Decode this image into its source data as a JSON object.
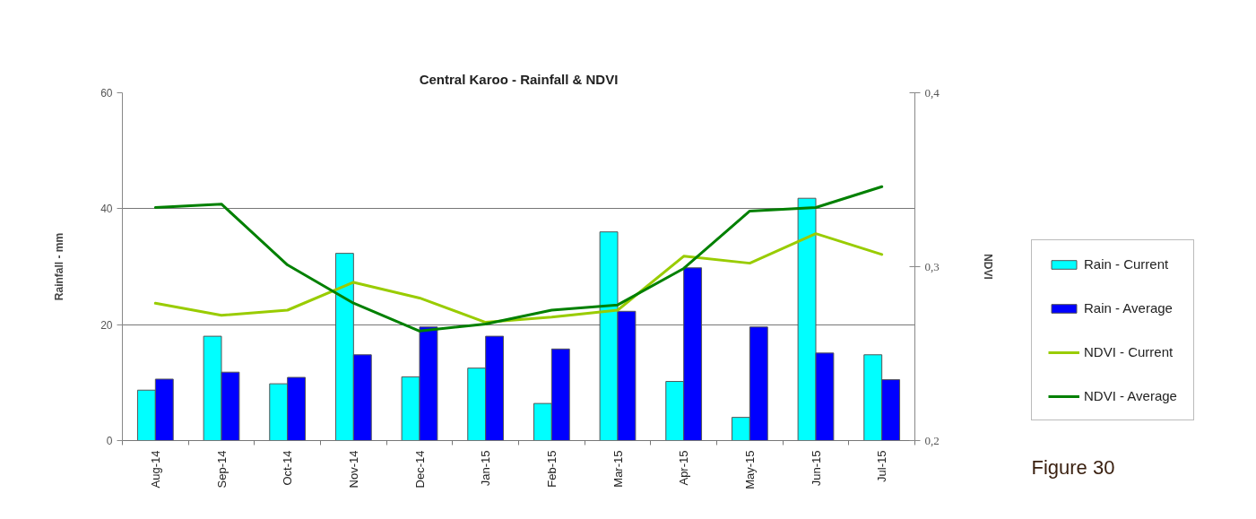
{
  "chart_data": {
    "type": "bar",
    "title": "Central Karoo - Rainfall & NDVI",
    "ylabel": "Rainfall - mm",
    "y2label": "NDVI",
    "annotations": [
      "Figure 30"
    ],
    "categories": [
      "Aug-14",
      "Sep-14",
      "Oct-14",
      "Nov-14",
      "Dec-14",
      "Jan-15",
      "Feb-15",
      "Mar-15",
      "Apr-15",
      "May-15",
      "Jun-15",
      "Jul-15"
    ],
    "series": [
      {
        "name": "Rain - Current",
        "color": "#00ffff",
        "values": [
          8.7,
          18.0,
          9.8,
          32.3,
          11.0,
          12.5,
          6.4,
          36.0,
          10.2,
          4.0,
          41.8,
          14.8
        ]
      },
      {
        "name": "Rain - Average",
        "color": "#0000ff",
        "values": [
          10.6,
          11.8,
          10.9,
          14.8,
          19.6,
          18.0,
          15.8,
          22.3,
          29.8,
          19.6,
          15.1,
          10.5
        ]
      },
      {
        "name": "NDVI - Current",
        "type": "line",
        "axis": "y2",
        "color": "#99cc00",
        "values": [
          0.279,
          0.272,
          0.275,
          0.291,
          0.282,
          0.268,
          0.271,
          0.275,
          0.306,
          0.302,
          0.319,
          0.307
        ]
      },
      {
        "name": "NDVI - Average",
        "type": "line",
        "axis": "y2",
        "color": "#008000",
        "values": [
          0.334,
          0.336,
          0.301,
          0.279,
          0.263,
          0.267,
          0.275,
          0.278,
          0.299,
          0.332,
          0.334,
          0.346
        ]
      }
    ],
    "ylim": [
      0,
      60
    ],
    "yticks": [
      0,
      20,
      40,
      60
    ],
    "y2lim": [
      0.2,
      0.4
    ],
    "y2ticks": [
      {
        "value": 0.2,
        "label": "0,2"
      },
      {
        "value": 0.3,
        "label": "0,3"
      },
      {
        "value": 0.4,
        "label": "0,4"
      }
    ],
    "grid": "y",
    "legend": "right"
  }
}
